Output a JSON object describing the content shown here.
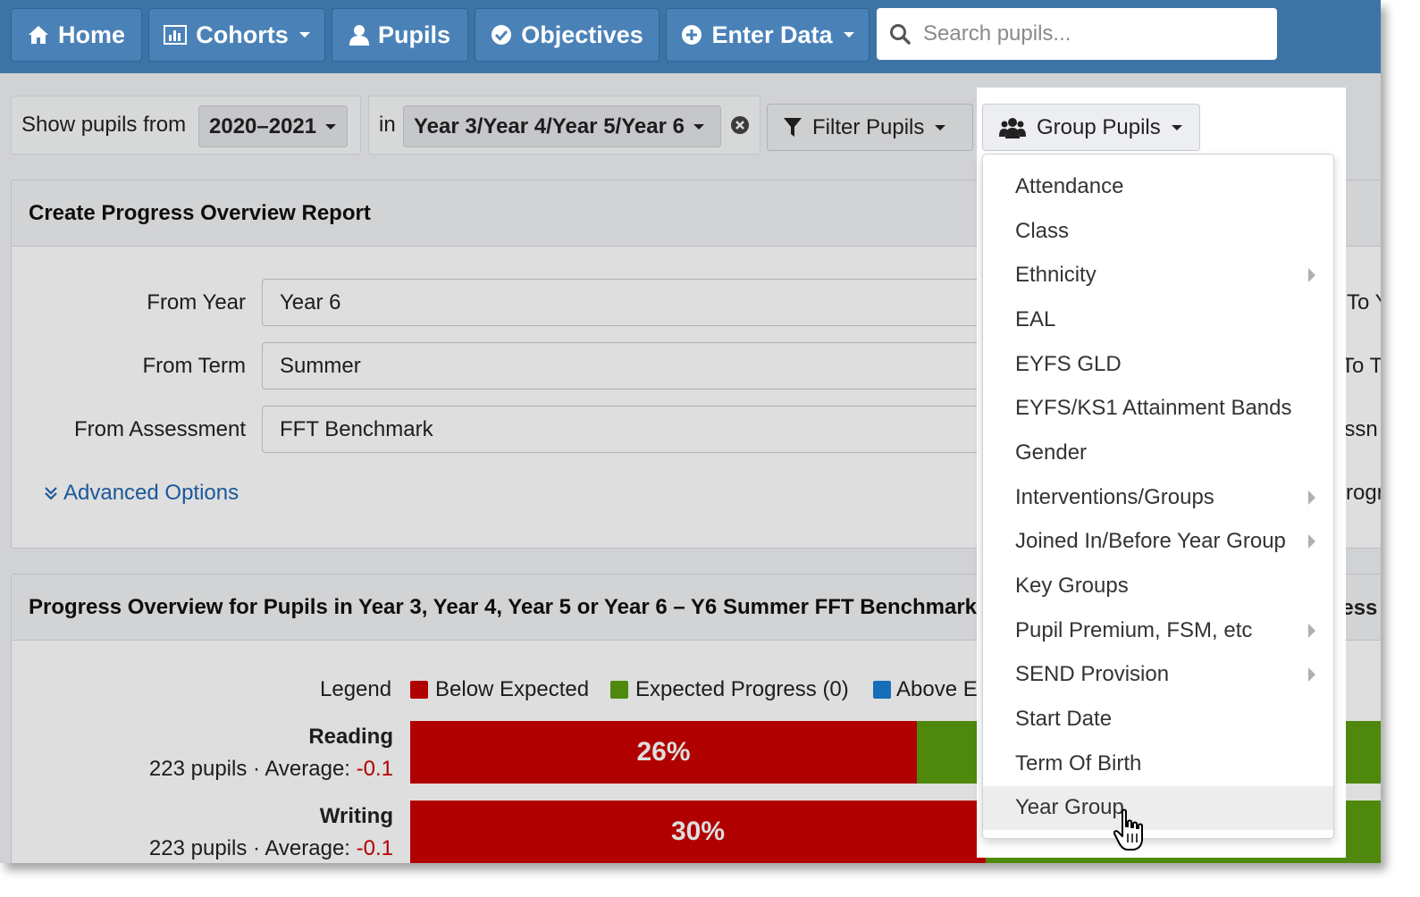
{
  "nav": {
    "home": "Home",
    "cohorts": "Cohorts",
    "pupils": "Pupils",
    "objectives": "Objectives",
    "enter_data": "Enter Data",
    "search_placeholder": "Search pupils..."
  },
  "filter_bar": {
    "show_label": "Show pupils from",
    "year_value": "2020–2021",
    "in_label": "in",
    "groups_value": "Year 3/Year 4/Year 5/Year 6",
    "filter_button": "Filter Pupils",
    "group_button": "Group Pupils"
  },
  "report_panel": {
    "title": "Create Progress Overview Report",
    "fields": [
      {
        "label": "From Year",
        "value": "Year 6"
      },
      {
        "label": "From Term",
        "value": "Summer"
      },
      {
        "label": "From Assessment",
        "value": "FFT Benchmark"
      }
    ],
    "advanced_link": "Advanced Options",
    "cut_right": [
      "To Y",
      "To T",
      "essn",
      "Progr"
    ]
  },
  "overview_panel": {
    "title": "Progress Overview for Pupils in Year 3, Year 4, Year 5 or Year 6 – Y6 Summer FFT Benchmark",
    "title_cut_right": "sess",
    "legend_label": "Legend",
    "legend": [
      {
        "name": "Below Expected",
        "color": "#cc0000"
      },
      {
        "name": "Expected Progress (0)",
        "color": "#5a9e10"
      },
      {
        "name": "Above Ex",
        "color": "#1a7fd4"
      }
    ],
    "rows": [
      {
        "subject": "Reading",
        "pupils_text": "223 pupils · Average: ",
        "average": "-0.1",
        "below_pct": "26%",
        "below_value": 26
      },
      {
        "subject": "Writing",
        "pupils_text": "223 pupils · Average: ",
        "average": "-0.1",
        "below_pct": "30%",
        "below_value": 30
      }
    ]
  },
  "group_menu": {
    "items": [
      {
        "label": "Attendance",
        "submenu": false
      },
      {
        "label": "Class",
        "submenu": false
      },
      {
        "label": "Ethnicity",
        "submenu": true
      },
      {
        "label": "EAL",
        "submenu": false
      },
      {
        "label": "EYFS GLD",
        "submenu": false
      },
      {
        "label": "EYFS/KS1 Attainment Bands",
        "submenu": false
      },
      {
        "label": "Gender",
        "submenu": false
      },
      {
        "label": "Interventions/Groups",
        "submenu": true
      },
      {
        "label": "Joined In/Before Year Group",
        "submenu": true
      },
      {
        "label": "Key Groups",
        "submenu": false
      },
      {
        "label": "Pupil Premium, FSM, etc",
        "submenu": true
      },
      {
        "label": "SEND Provision",
        "submenu": true
      },
      {
        "label": "Start Date",
        "submenu": false
      },
      {
        "label": "Term Of Birth",
        "submenu": false
      },
      {
        "label": "Year Group",
        "submenu": false,
        "hovered": true
      }
    ]
  }
}
